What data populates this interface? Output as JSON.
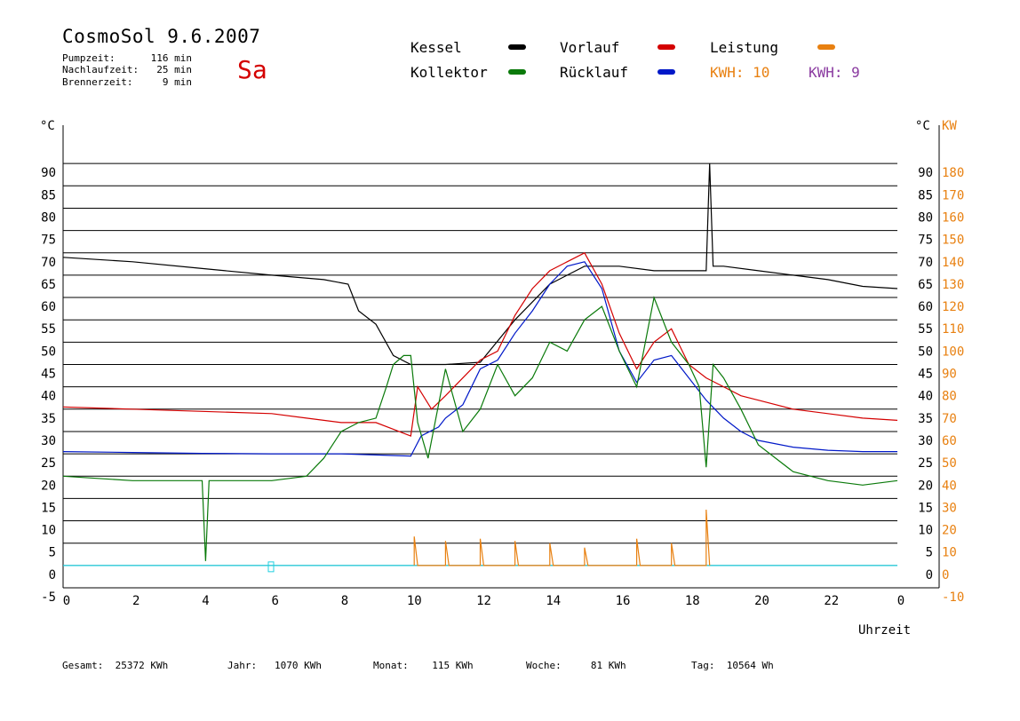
{
  "header": {
    "title": "CosmoSol 9.6.2007",
    "day": "Sa",
    "stats": [
      {
        "label": "Pumpzeit:",
        "value": "116 min"
      },
      {
        "label": "Nachlaufzeit:",
        "value": "25 min"
      },
      {
        "label": "Brennerzeit:",
        "value": "9 min"
      }
    ]
  },
  "legend": {
    "kessel": "Kessel",
    "vorlauf": "Vorlauf",
    "leistung": "Leistung",
    "kollektor": "Kollektor",
    "ruecklauf": "Rücklauf",
    "kwh1": "KWH: 10",
    "kwh2": "KWH: 9"
  },
  "colors": {
    "kessel": "#000000",
    "vorlauf": "#d40000",
    "leistung": "#e88010",
    "kollektor": "#0a7a0a",
    "ruecklauf": "#0018c8",
    "kwh2": "#8a3aa0",
    "baseline": "#20d0e0"
  },
  "footer": [
    {
      "label": "Gesamt:",
      "value": "25372 KWh"
    },
    {
      "label": "Jahr:",
      "value": "1070 KWh"
    },
    {
      "label": "Monat:",
      "value": "115 KWh"
    },
    {
      "label": "Woche:",
      "value": "81 KWh"
    },
    {
      "label": "Tag:",
      "value": "10564 Wh"
    }
  ],
  "chart_data": {
    "type": "line",
    "xlabel": "Uhrzeit",
    "ylabel_left": "°C",
    "ylabel_right": "°C",
    "ylabel_kw": "KW",
    "xlim": [
      0,
      24
    ],
    "ylim": [
      -5,
      95
    ],
    "kw_lim": [
      -10,
      190
    ],
    "x_ticks": [
      0,
      2,
      4,
      6,
      8,
      10,
      12,
      14,
      16,
      18,
      20,
      22,
      "0"
    ],
    "y_ticks": [
      -5,
      0,
      5,
      10,
      15,
      20,
      25,
      30,
      35,
      40,
      45,
      50,
      55,
      60,
      65,
      70,
      75,
      80,
      85,
      90
    ],
    "y_ticks_right": [
      0,
      5,
      10,
      15,
      20,
      25,
      30,
      35,
      40,
      45,
      50,
      55,
      60,
      65,
      70,
      75,
      80,
      85,
      90
    ],
    "kw_ticks": [
      -10,
      0,
      10,
      20,
      30,
      40,
      50,
      60,
      70,
      80,
      90,
      100,
      110,
      120,
      130,
      140,
      150,
      160,
      170,
      180
    ],
    "grid": true,
    "series": [
      {
        "name": "Kessel",
        "points": [
          [
            0,
            69
          ],
          [
            2,
            68
          ],
          [
            4,
            66.5
          ],
          [
            6,
            65
          ],
          [
            7.5,
            64
          ],
          [
            8.2,
            63
          ],
          [
            8.5,
            57
          ],
          [
            9,
            54
          ],
          [
            9.5,
            47
          ],
          [
            10,
            45
          ],
          [
            11,
            45
          ],
          [
            12,
            45.5
          ],
          [
            13,
            55
          ],
          [
            14,
            63
          ],
          [
            15,
            67
          ],
          [
            16,
            67
          ],
          [
            17,
            66
          ],
          [
            18,
            66
          ],
          [
            18.5,
            66
          ],
          [
            18.6,
            90
          ],
          [
            18.7,
            67
          ],
          [
            19,
            67
          ],
          [
            20,
            66
          ],
          [
            21,
            65
          ],
          [
            22,
            64
          ],
          [
            23,
            62.5
          ],
          [
            24,
            62
          ]
        ]
      },
      {
        "name": "Vorlauf",
        "points": [
          [
            0,
            35.5
          ],
          [
            2,
            35
          ],
          [
            4,
            34.5
          ],
          [
            6,
            34
          ],
          [
            7,
            33
          ],
          [
            8,
            32
          ],
          [
            8.5,
            32
          ],
          [
            9,
            32
          ],
          [
            9.5,
            30.5
          ],
          [
            10,
            29
          ],
          [
            10.2,
            40
          ],
          [
            10.6,
            35
          ],
          [
            11,
            38
          ],
          [
            11.5,
            42
          ],
          [
            12,
            46
          ],
          [
            12.5,
            48
          ],
          [
            13,
            56
          ],
          [
            13.5,
            62
          ],
          [
            14,
            66
          ],
          [
            14.5,
            68
          ],
          [
            15,
            70
          ],
          [
            15.5,
            63
          ],
          [
            16,
            52
          ],
          [
            16.5,
            44
          ],
          [
            17,
            50
          ],
          [
            17.5,
            53
          ],
          [
            18,
            45
          ],
          [
            18.5,
            42
          ],
          [
            19,
            40
          ],
          [
            19.5,
            38
          ],
          [
            20,
            37
          ],
          [
            21,
            35
          ],
          [
            22,
            34
          ],
          [
            23,
            33
          ],
          [
            24,
            32.5
          ]
        ]
      },
      {
        "name": "Rücklauf",
        "points": [
          [
            0,
            25.5
          ],
          [
            2,
            25.3
          ],
          [
            4,
            25.1
          ],
          [
            6,
            25
          ],
          [
            8,
            25
          ],
          [
            10,
            24.5
          ],
          [
            10.3,
            29
          ],
          [
            10.8,
            31
          ],
          [
            11,
            33
          ],
          [
            11.5,
            36
          ],
          [
            12,
            44
          ],
          [
            12.5,
            46
          ],
          [
            13,
            52
          ],
          [
            13.5,
            57
          ],
          [
            14,
            63
          ],
          [
            14.5,
            67
          ],
          [
            15,
            68
          ],
          [
            15.5,
            62
          ],
          [
            16,
            48
          ],
          [
            16.5,
            41
          ],
          [
            17,
            46
          ],
          [
            17.5,
            47
          ],
          [
            18,
            42
          ],
          [
            18.5,
            37
          ],
          [
            19,
            33
          ],
          [
            19.5,
            30
          ],
          [
            20,
            28
          ],
          [
            21,
            26.5
          ],
          [
            22,
            25.8
          ],
          [
            23,
            25.5
          ],
          [
            24,
            25.5
          ]
        ]
      },
      {
        "name": "Kollektor",
        "points": [
          [
            0,
            20
          ],
          [
            2,
            19
          ],
          [
            4,
            19
          ],
          [
            4.1,
            1
          ],
          [
            4.2,
            19
          ],
          [
            6,
            19
          ],
          [
            7,
            20
          ],
          [
            7.5,
            24
          ],
          [
            8,
            30
          ],
          [
            8.5,
            32
          ],
          [
            9,
            33
          ],
          [
            9.3,
            40
          ],
          [
            9.5,
            45
          ],
          [
            9.8,
            47
          ],
          [
            10,
            47
          ],
          [
            10.2,
            32
          ],
          [
            10.5,
            24
          ],
          [
            11,
            44
          ],
          [
            11.5,
            30
          ],
          [
            12,
            35
          ],
          [
            12.5,
            45
          ],
          [
            13,
            38
          ],
          [
            13.5,
            42
          ],
          [
            14,
            50
          ],
          [
            14.5,
            48
          ],
          [
            15,
            55
          ],
          [
            15.5,
            58
          ],
          [
            16,
            48
          ],
          [
            16.5,
            40
          ],
          [
            17,
            60
          ],
          [
            17.5,
            50
          ],
          [
            18,
            45
          ],
          [
            18.3,
            40
          ],
          [
            18.5,
            22
          ],
          [
            18.7,
            45
          ],
          [
            19,
            42
          ],
          [
            19.5,
            35
          ],
          [
            20,
            27
          ],
          [
            21,
            21
          ],
          [
            22,
            19
          ],
          [
            23,
            18
          ],
          [
            24,
            19
          ]
        ]
      },
      {
        "name": "Leistung",
        "points": [
          [
            10.1,
            0
          ],
          [
            10.1,
            13
          ],
          [
            10.2,
            0
          ],
          [
            11,
            0
          ],
          [
            11,
            11
          ],
          [
            11.1,
            0
          ],
          [
            12,
            0
          ],
          [
            12,
            12
          ],
          [
            12.1,
            0
          ],
          [
            13,
            0
          ],
          [
            13,
            11
          ],
          [
            13.1,
            0
          ],
          [
            14,
            0
          ],
          [
            14,
            10
          ],
          [
            14.1,
            0
          ],
          [
            15,
            0
          ],
          [
            15,
            8
          ],
          [
            15.1,
            0
          ],
          [
            16.5,
            0
          ],
          [
            16.5,
            12
          ],
          [
            16.6,
            0
          ],
          [
            17.5,
            0
          ],
          [
            17.5,
            10
          ],
          [
            17.6,
            0
          ],
          [
            18.5,
            0
          ],
          [
            18.5,
            25
          ],
          [
            18.6,
            0
          ]
        ]
      }
    ],
    "annotations": [
      "KWH: 10",
      "KWH: 9"
    ]
  }
}
